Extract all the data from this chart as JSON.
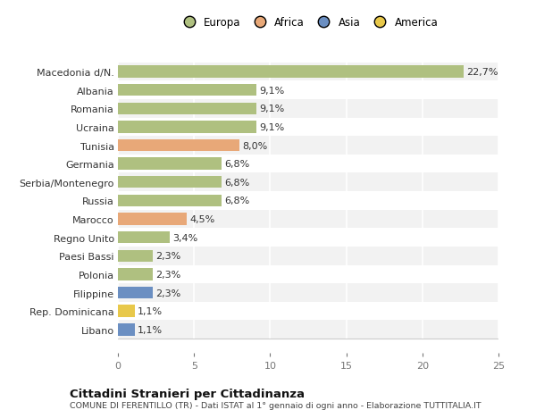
{
  "categories": [
    "Libano",
    "Rep. Dominicana",
    "Filippine",
    "Polonia",
    "Paesi Bassi",
    "Regno Unito",
    "Marocco",
    "Russia",
    "Serbia/Montenegro",
    "Germania",
    "Tunisia",
    "Ucraina",
    "Romania",
    "Albania",
    "Macedonia d/N."
  ],
  "values": [
    1.1,
    1.1,
    2.3,
    2.3,
    2.3,
    3.4,
    4.5,
    6.8,
    6.8,
    6.8,
    8.0,
    9.1,
    9.1,
    9.1,
    22.7
  ],
  "colors": [
    "#6b8fc2",
    "#e8c84a",
    "#6b8fc2",
    "#afc080",
    "#afc080",
    "#afc080",
    "#e8a878",
    "#afc080",
    "#afc080",
    "#afc080",
    "#e8a878",
    "#afc080",
    "#afc080",
    "#afc080",
    "#afc080"
  ],
  "labels": [
    "1,1%",
    "1,1%",
    "2,3%",
    "2,3%",
    "2,3%",
    "3,4%",
    "4,5%",
    "6,8%",
    "6,8%",
    "6,8%",
    "8,0%",
    "9,1%",
    "9,1%",
    "9,1%",
    "22,7%"
  ],
  "xlim": [
    0,
    25
  ],
  "xticks": [
    0,
    5,
    10,
    15,
    20,
    25
  ],
  "legend_labels": [
    "Europa",
    "Africa",
    "Asia",
    "America"
  ],
  "legend_colors": [
    "#afc080",
    "#e8a878",
    "#6b8fc2",
    "#e8c84a"
  ],
  "title": "Cittadini Stranieri per Cittadinanza",
  "subtitle": "COMUNE DI FERENTILLO (TR) - Dati ISTAT al 1° gennaio di ogni anno - Elaborazione TUTTITALIA.IT",
  "bg_color": "#ffffff",
  "bar_row_alt": "#f5f5f5",
  "grid_color": "#ffffff",
  "label_fontsize": 8,
  "tick_fontsize": 8,
  "bar_height": 0.65
}
